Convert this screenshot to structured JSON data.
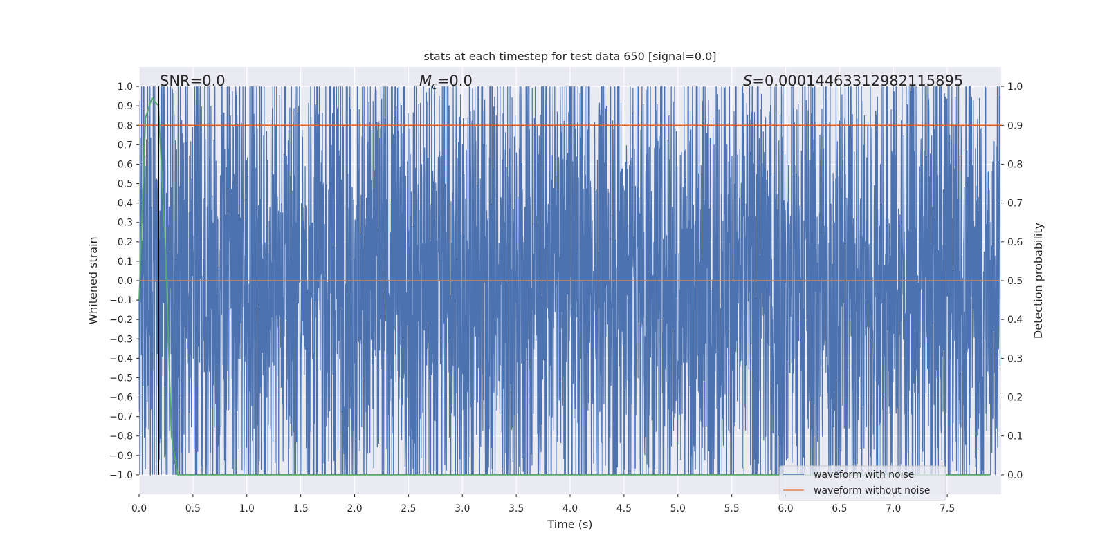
{
  "chart_data": {
    "type": "line",
    "title": "stats at each timestep for test data 650 [signal=0.0]",
    "xlabel": "Time (s)",
    "ylabel": "Whitened strain",
    "y2label": "Detection probability",
    "xlim": [
      0.0,
      8.0
    ],
    "ylim": [
      -1.1,
      1.1
    ],
    "y2lim": [
      -0.05,
      1.05
    ],
    "x_ticks": [
      "0.0",
      "0.5",
      "1.0",
      "1.5",
      "2.0",
      "2.5",
      "3.0",
      "3.5",
      "4.0",
      "4.5",
      "5.0",
      "5.5",
      "6.0",
      "6.5",
      "7.0",
      "7.5"
    ],
    "y_ticks": [
      "1.0",
      "0.9",
      "0.8",
      "0.7",
      "0.6",
      "0.5",
      "0.4",
      "0.3",
      "0.2",
      "0.1",
      "0.0",
      "−0.1",
      "−0.2",
      "−0.3",
      "−0.4",
      "−0.5",
      "−0.6",
      "−0.7",
      "−0.8",
      "−0.9",
      "−1.0"
    ],
    "y2_ticks": [
      "1.0",
      "0.9",
      "0.8",
      "0.7",
      "0.6",
      "0.5",
      "0.4",
      "0.3",
      "0.2",
      "0.1",
      "0.0"
    ],
    "grid": true,
    "legend_position": "bottom-right",
    "annotations": {
      "snr_prefix": "SNR=",
      "snr_value": "0.0",
      "mc_symbol": "M",
      "mc_subscript": "c",
      "mc_value": "=0.0",
      "s_symbol": "S",
      "s_value": "=0.00014463312982115895"
    },
    "threshold_line": {
      "y2": 0.9,
      "color": "#dd5f2e"
    },
    "event_marker": {
      "x": 0.18,
      "color": "#000000"
    },
    "series": [
      {
        "name": "waveform with noise",
        "color": "#4c72b0",
        "kind": "noise",
        "amplitude": 1.0,
        "n_samples": 4096,
        "x_range": [
          0.0,
          7.99
        ]
      },
      {
        "name": "waveform without noise",
        "color": "#dd8452",
        "values_constant": 0.0,
        "x_range": [
          0.0,
          7.99
        ]
      },
      {
        "name": "detection probability",
        "color": "#55a868",
        "axis": "right",
        "x": [
          0.0,
          0.06,
          0.12,
          0.18,
          0.25,
          0.3,
          0.36,
          0.5,
          1.0,
          2.0,
          4.0,
          6.0,
          7.9
        ],
        "values": [
          0.45,
          0.92,
          0.97,
          0.95,
          0.55,
          0.1,
          0.0,
          0.0,
          0.0,
          0.0,
          0.0,
          0.0,
          0.0
        ]
      }
    ]
  }
}
